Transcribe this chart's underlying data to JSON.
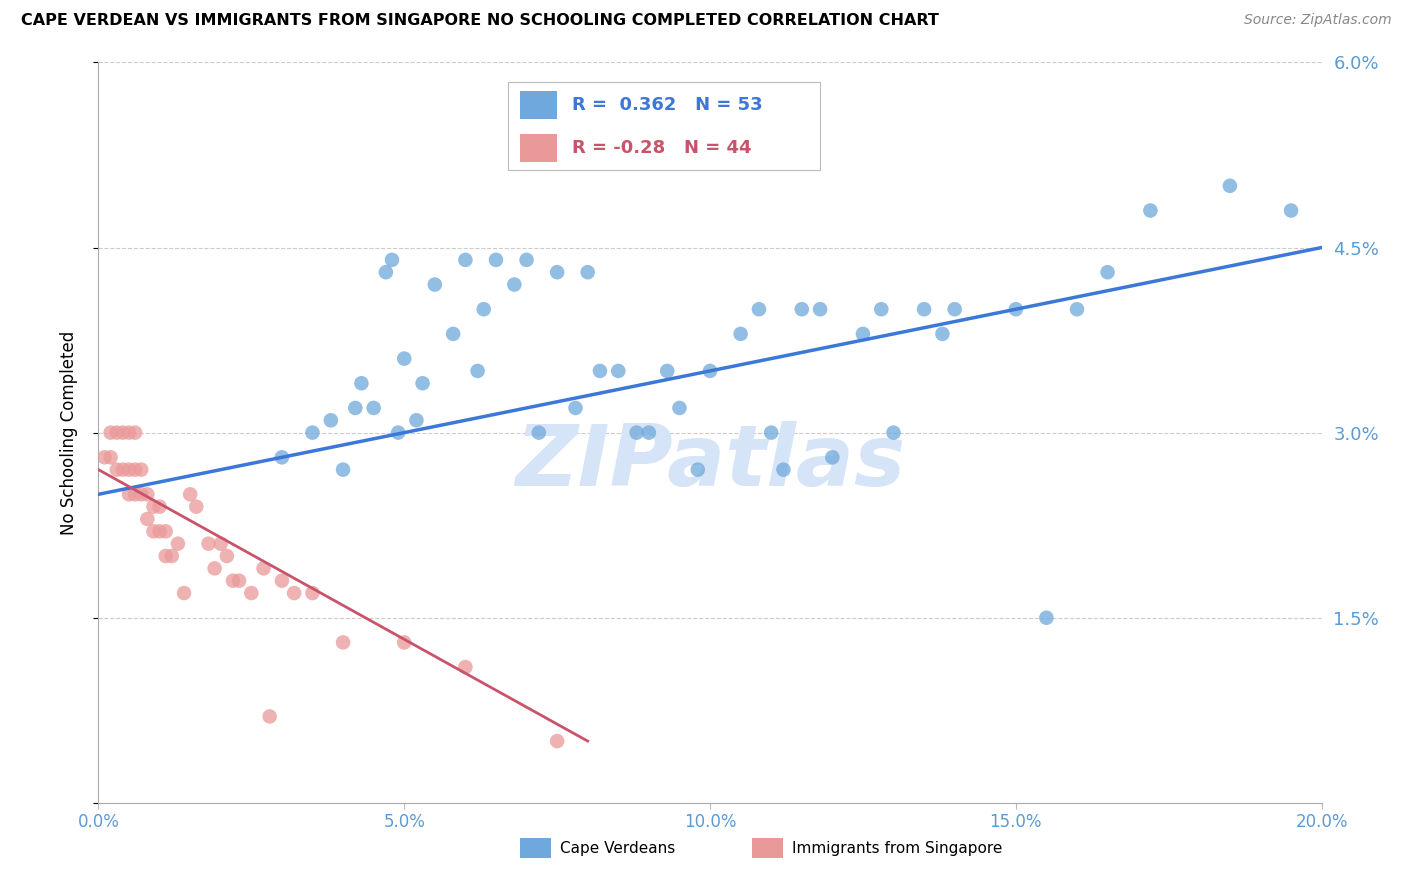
{
  "title": "CAPE VERDEAN VS IMMIGRANTS FROM SINGAPORE NO SCHOOLING COMPLETED CORRELATION CHART",
  "source": "Source: ZipAtlas.com",
  "ylabel": "No Schooling Completed",
  "xlim": [
    0.0,
    0.2
  ],
  "ylim": [
    0.0,
    0.06
  ],
  "xticks": [
    0.0,
    0.05,
    0.1,
    0.15,
    0.2
  ],
  "xtick_labels": [
    "0.0%",
    "5.0%",
    "10.0%",
    "15.0%",
    "20.0%"
  ],
  "yticks": [
    0.0,
    0.015,
    0.03,
    0.045,
    0.06
  ],
  "ytick_labels": [
    "",
    "1.5%",
    "3.0%",
    "4.5%",
    "6.0%"
  ],
  "blue_R": 0.362,
  "blue_N": 53,
  "pink_R": -0.28,
  "pink_N": 44,
  "blue_color": "#6fa8dc",
  "pink_color": "#ea9999",
  "blue_line_color": "#3c78d8",
  "pink_line_color": "#c9536a",
  "axis_label_color": "#5b9bd5",
  "watermark": "ZIPatlas",
  "watermark_color": "#d6e4f7",
  "legend_label_blue": "Cape Verdeans",
  "legend_label_pink": "Immigrants from Singapore",
  "blue_x": [
    0.03,
    0.035,
    0.038,
    0.04,
    0.042,
    0.043,
    0.045,
    0.047,
    0.048,
    0.049,
    0.05,
    0.052,
    0.053,
    0.055,
    0.058,
    0.06,
    0.062,
    0.063,
    0.065,
    0.068,
    0.07,
    0.072,
    0.075,
    0.078,
    0.08,
    0.082,
    0.085,
    0.088,
    0.09,
    0.093,
    0.095,
    0.098,
    0.1,
    0.105,
    0.108,
    0.11,
    0.112,
    0.115,
    0.118,
    0.12,
    0.125,
    0.128,
    0.13,
    0.135,
    0.138,
    0.14,
    0.15,
    0.155,
    0.16,
    0.165,
    0.172,
    0.185,
    0.195
  ],
  "blue_y": [
    0.028,
    0.03,
    0.031,
    0.027,
    0.032,
    0.034,
    0.032,
    0.043,
    0.044,
    0.03,
    0.036,
    0.031,
    0.034,
    0.042,
    0.038,
    0.044,
    0.035,
    0.04,
    0.044,
    0.042,
    0.044,
    0.03,
    0.043,
    0.032,
    0.043,
    0.035,
    0.035,
    0.03,
    0.03,
    0.035,
    0.032,
    0.027,
    0.035,
    0.038,
    0.04,
    0.03,
    0.027,
    0.04,
    0.04,
    0.028,
    0.038,
    0.04,
    0.03,
    0.04,
    0.038,
    0.04,
    0.04,
    0.015,
    0.04,
    0.043,
    0.048,
    0.05,
    0.048
  ],
  "pink_x": [
    0.001,
    0.002,
    0.002,
    0.003,
    0.003,
    0.004,
    0.004,
    0.005,
    0.005,
    0.005,
    0.006,
    0.006,
    0.006,
    0.007,
    0.007,
    0.008,
    0.008,
    0.009,
    0.009,
    0.01,
    0.01,
    0.011,
    0.011,
    0.012,
    0.013,
    0.014,
    0.015,
    0.016,
    0.018,
    0.019,
    0.02,
    0.021,
    0.022,
    0.023,
    0.025,
    0.027,
    0.028,
    0.03,
    0.032,
    0.035,
    0.04,
    0.05,
    0.06,
    0.075
  ],
  "pink_y": [
    0.028,
    0.028,
    0.03,
    0.027,
    0.03,
    0.027,
    0.03,
    0.025,
    0.027,
    0.03,
    0.025,
    0.027,
    0.03,
    0.025,
    0.027,
    0.023,
    0.025,
    0.022,
    0.024,
    0.022,
    0.024,
    0.022,
    0.02,
    0.02,
    0.021,
    0.017,
    0.025,
    0.024,
    0.021,
    0.019,
    0.021,
    0.02,
    0.018,
    0.018,
    0.017,
    0.019,
    0.007,
    0.018,
    0.017,
    0.017,
    0.013,
    0.013,
    0.011,
    0.005
  ],
  "blue_line_x0": 0.0,
  "blue_line_y0": 0.025,
  "blue_line_x1": 0.2,
  "blue_line_y1": 0.045,
  "pink_line_x0": 0.0,
  "pink_line_y0": 0.027,
  "pink_line_x1": 0.08,
  "pink_line_y1": 0.005
}
